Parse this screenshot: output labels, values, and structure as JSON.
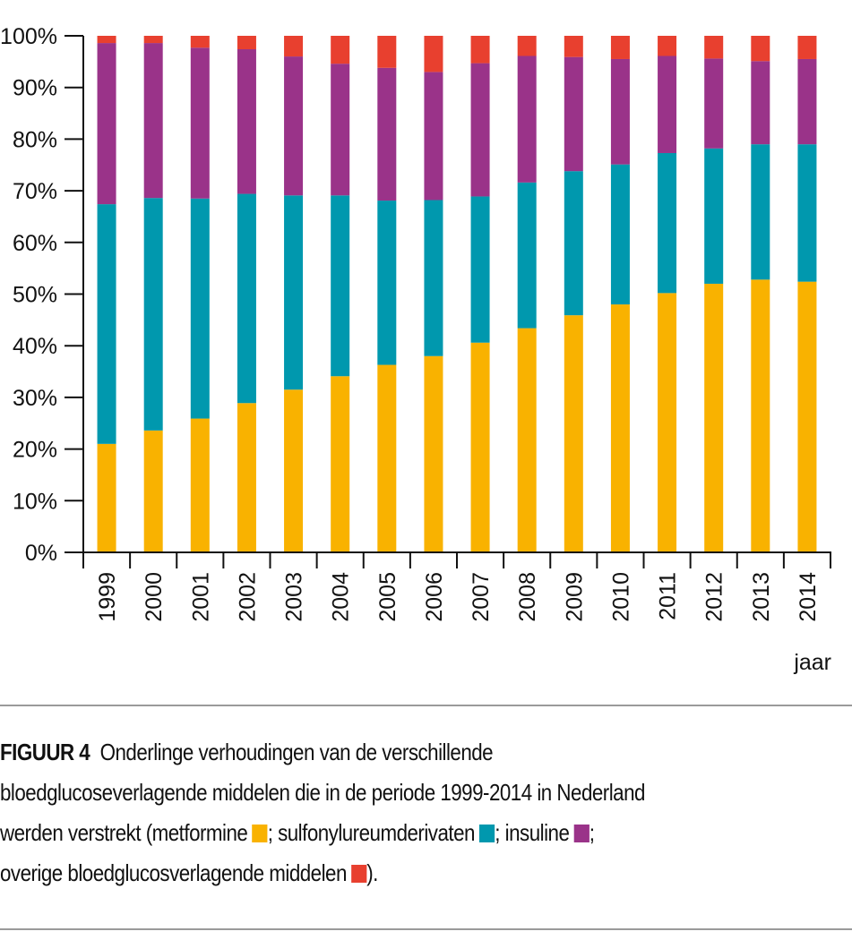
{
  "chart_data": {
    "type": "bar",
    "stacked": true,
    "title": "",
    "xlabel": "jaar",
    "ylabel": "",
    "ylim": [
      0,
      100
    ],
    "y_ticks": [
      "0%",
      "10%",
      "20%",
      "30%",
      "40%",
      "50%",
      "60%",
      "70%",
      "80%",
      "90%",
      "100%"
    ],
    "grid": false,
    "legend": "in caption",
    "categories": [
      "1999",
      "2000",
      "2001",
      "2002",
      "2003",
      "2004",
      "2005",
      "2006",
      "2007",
      "2008",
      "2009",
      "2010",
      "2011",
      "2012",
      "2013",
      "2014"
    ],
    "series": [
      {
        "name": "metformine",
        "color": "#F9B200",
        "values": [
          21.0,
          23.6,
          25.9,
          28.9,
          31.5,
          34.1,
          36.3,
          38.0,
          40.6,
          43.4,
          45.9,
          48.0,
          50.2,
          52.0,
          52.8,
          52.4
        ]
      },
      {
        "name": "sulfonylureumderivaten",
        "color": "#0098AE",
        "values": [
          46.4,
          45.0,
          42.6,
          40.5,
          37.6,
          35.0,
          31.8,
          30.2,
          28.3,
          28.2,
          27.9,
          27.1,
          27.1,
          26.2,
          26.2,
          26.6
        ]
      },
      {
        "name": "insuline",
        "color": "#9A3389",
        "values": [
          31.2,
          30.0,
          29.2,
          28.0,
          26.9,
          25.5,
          25.7,
          24.8,
          25.8,
          24.5,
          22.1,
          20.4,
          18.8,
          17.4,
          16.1,
          16.5
        ]
      },
      {
        "name": "overige bloedglucosverlagende middelen",
        "color": "#E8402F",
        "values": [
          1.4,
          1.4,
          2.3,
          2.6,
          4.0,
          5.4,
          6.2,
          7.0,
          5.3,
          3.9,
          4.1,
          4.5,
          3.9,
          4.4,
          4.9,
          4.5
        ]
      }
    ]
  },
  "caption": {
    "figure_label": "FIGUUR 4",
    "line1": "Onderlinge verhoudingen van de verschillende",
    "line2": "bloedglucoseverlagende middelen die in de periode 1999-2014 in Nederland",
    "line3_prefix": "werden verstrekt (metformine",
    "sep1": "; sulfonylureumderivaten",
    "sep2": "; insuline",
    "sep3": ";",
    "line4_prefix": "overige bloedglucosverlagende middelen",
    "line4_suffix": ")."
  }
}
